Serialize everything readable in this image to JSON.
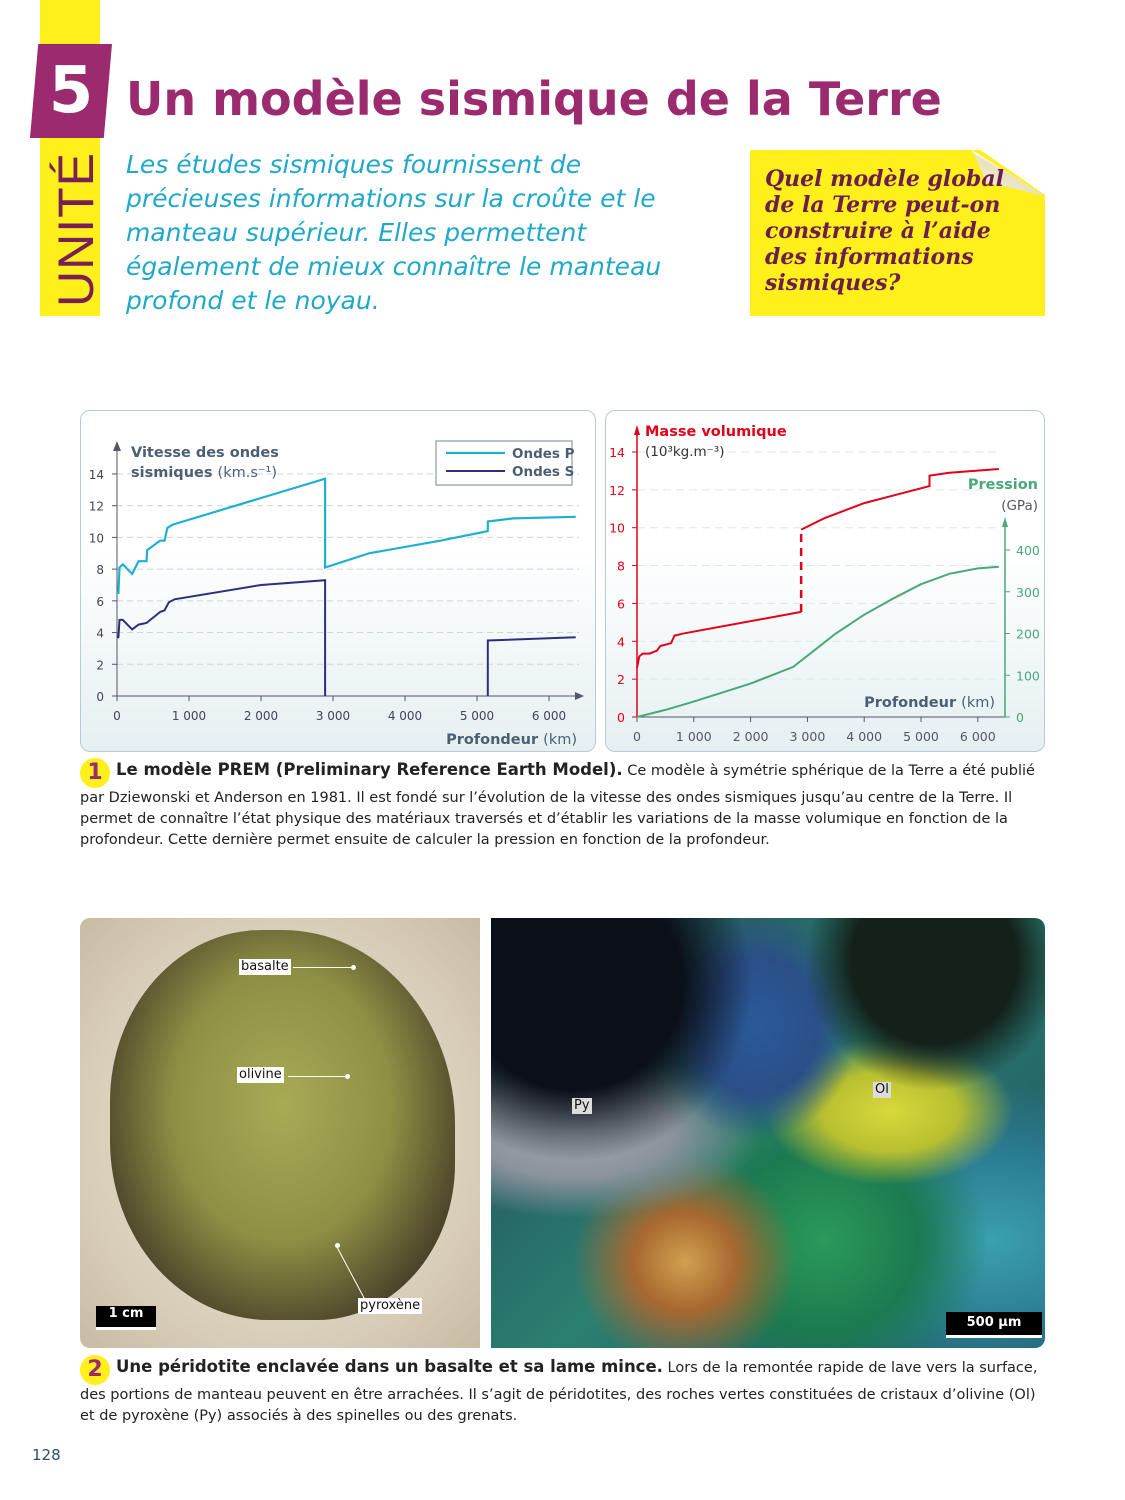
{
  "unit": {
    "label": "UNITÉ",
    "number": "5",
    "title": "Un modèle sismique de la Terre"
  },
  "intro": "Les études sismiques fournissent de précieuses informations sur la croûte et le manteau supérieur. Elles permettent également de mieux connaître le manteau profond et le noyau.",
  "question": "Quel modèle global de la Terre peut-on construire à l’aide des informations sismiques?",
  "colors": {
    "accent": "#9b2a6e",
    "yellow": "#ffef1a",
    "intro": "#1fa8c9",
    "p_waves": "#1fb0d0",
    "s_waves": "#2e2e7e",
    "density": "#e3001b",
    "pressure": "#4aa878"
  },
  "chart_data": [
    {
      "type": "line",
      "ylabel": "Vitesse des ondes",
      "ylabel2": "sismiques",
      "yunit": "(km.s⁻¹)",
      "xlabel": "Profondeur",
      "xunit": "(km)",
      "xlim": [
        0,
        6371
      ],
      "ylim": [
        0,
        14
      ],
      "xticks": [
        "0",
        "1 000",
        "2 000",
        "3 000",
        "4 000",
        "5 000",
        "6 000"
      ],
      "yticks": [
        "0",
        "2",
        "4",
        "6",
        "8",
        "10",
        "12",
        "14"
      ],
      "grid": true,
      "legend": "top-right",
      "series": [
        {
          "name": "Ondes P",
          "points": [
            [
              0,
              6.5
            ],
            [
              20,
              6.5
            ],
            [
              35,
              8.1
            ],
            [
              80,
              8.3
            ],
            [
              210,
              7.7
            ],
            [
              300,
              8.5
            ],
            [
              410,
              8.5
            ],
            [
              420,
              9.2
            ],
            [
              600,
              9.8
            ],
            [
              660,
              9.8
            ],
            [
              700,
              10.6
            ],
            [
              770,
              10.8
            ],
            [
              2890,
              13.7
            ],
            [
              2890,
              8.1
            ],
            [
              3500,
              9.0
            ],
            [
              4500,
              9.8
            ],
            [
              5150,
              10.4
            ],
            [
              5150,
              11.0
            ],
            [
              5500,
              11.2
            ],
            [
              6371,
              11.3
            ]
          ]
        },
        {
          "name": "Ondes S",
          "points": [
            [
              0,
              3.7
            ],
            [
              20,
              3.7
            ],
            [
              35,
              4.8
            ],
            [
              80,
              4.8
            ],
            [
              210,
              4.2
            ],
            [
              300,
              4.5
            ],
            [
              410,
              4.6
            ],
            [
              600,
              5.3
            ],
            [
              660,
              5.4
            ],
            [
              720,
              5.9
            ],
            [
              800,
              6.1
            ],
            [
              2000,
              7.0
            ],
            [
              2890,
              7.3
            ],
            [
              2890,
              0
            ]
          ],
          "points_inner_core": [
            [
              5150,
              0
            ],
            [
              5150,
              3.5
            ],
            [
              6371,
              3.7
            ]
          ]
        }
      ]
    },
    {
      "type": "line",
      "ylabel": "Masse volumique",
      "yunit": "(10³kg.m⁻³)",
      "y2label": "Pression",
      "y2unit": "(GPa)",
      "xlabel": "Profondeur",
      "xunit": "(km)",
      "xlim": [
        0,
        6371
      ],
      "ylim": [
        0,
        14
      ],
      "y2lim": [
        0,
        450
      ],
      "xticks": [
        "0",
        "1 000",
        "2 000",
        "3 000",
        "4 000",
        "5 000",
        "6 000"
      ],
      "yticks": [
        "0",
        "2",
        "4",
        "6",
        "8",
        "10",
        "12",
        "14"
      ],
      "y2ticks": [
        "0",
        "100",
        "200",
        "300",
        "400"
      ],
      "grid": true,
      "series": [
        {
          "axis": "left",
          "points": [
            [
              0,
              2.6
            ],
            [
              40,
              3.2
            ],
            [
              100,
              3.35
            ],
            [
              220,
              3.35
            ],
            [
              350,
              3.5
            ],
            [
              410,
              3.75
            ],
            [
              600,
              3.9
            ],
            [
              660,
              4.3
            ],
            [
              800,
              4.4
            ],
            [
              2890,
              5.55
            ]
          ],
          "points_core": [
            [
              2890,
              9.9
            ],
            [
              3300,
              10.5
            ],
            [
              4000,
              11.3
            ],
            [
              5150,
              12.2
            ],
            [
              5150,
              12.75
            ],
            [
              5500,
              12.9
            ],
            [
              6371,
              13.1
            ]
          ],
          "discontinuity": "dashed"
        },
        {
          "axis": "right",
          "points": [
            [
              0,
              0
            ],
            [
              500,
              17
            ],
            [
              1000,
              37
            ],
            [
              2000,
              80
            ],
            [
              2750,
              120
            ],
            [
              3500,
              200
            ],
            [
              4000,
              245
            ],
            [
              4500,
              283
            ],
            [
              5000,
              318
            ],
            [
              5500,
              343
            ],
            [
              6000,
              356
            ],
            [
              6371,
              360
            ]
          ]
        }
      ]
    }
  ],
  "doc1": {
    "number": "1",
    "title": "Le modèle PREM (Preliminary Reference Earth Model).",
    "text": "Ce modèle à symétrie sphérique de la Terre a été publié par Dziewonski et Anderson en 1981. Il est fondé sur l’évolution de la vitesse des ondes sismiques jusqu’au centre de la Terre. Il permet de connaître l’état physique des matériaux traversés et d’établir les variations de la masse volumique en fonction de la profondeur. Cette dernière permet ensuite de calculer la pression en fonction de la profondeur."
  },
  "photo1": {
    "labels": [
      "basalte",
      "olivine",
      "pyroxène"
    ],
    "scale": "1 cm"
  },
  "photo2": {
    "labels": [
      "Py",
      "Ol"
    ],
    "scale": "500 µm"
  },
  "doc2": {
    "number": "2",
    "title": "Une péridotite enclavée dans un basalte et sa lame mince.",
    "text": "Lors de la remontée rapide de lave vers la surface, des portions de manteau peuvent en être arrachées. Il s’agit de péridotites, des roches vertes constituées de cristaux d’olivine (Ol) et de pyroxène (Py) associés à des spinelles ou des grenats."
  },
  "page_number": "128"
}
